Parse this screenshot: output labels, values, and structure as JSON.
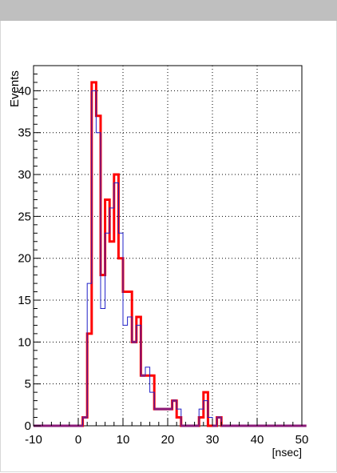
{
  "window": {
    "title": ""
  },
  "chart_data": {
    "type": "histogram",
    "title": "",
    "xlabel": "[nsec]",
    "ylabel": "Events",
    "xlim": [
      -10,
      50
    ],
    "ylim": [
      0,
      43
    ],
    "grid": true,
    "bin_width": 1,
    "x_ticks": [
      -10,
      0,
      10,
      20,
      30,
      40,
      50
    ],
    "y_ticks": [
      0,
      5,
      10,
      15,
      20,
      25,
      30,
      35,
      40
    ],
    "series": [
      {
        "color": "#2020c8",
        "stroke_width": 1,
        "bins_start": 1,
        "values": [
          1,
          17,
          40,
          35,
          14,
          23,
          26,
          29,
          23,
          12,
          13,
          10,
          12,
          6,
          7,
          4,
          2,
          2,
          2,
          2,
          3,
          2,
          0,
          0,
          0,
          0,
          2,
          3,
          1,
          0,
          1,
          0,
          0,
          0,
          0,
          0,
          0,
          0,
          0,
          0,
          0,
          0,
          0,
          0,
          0,
          0,
          0,
          0,
          0,
          0
        ]
      },
      {
        "color": "#ff0000",
        "stroke_width": 3,
        "bins_start": 1,
        "values": [
          1,
          11,
          41,
          37,
          18,
          27,
          22,
          30,
          20,
          16,
          16,
          10,
          13,
          6,
          6,
          6,
          2,
          2,
          2,
          2,
          3,
          1,
          0,
          0,
          0,
          0,
          1,
          4,
          0,
          0,
          1,
          0,
          0,
          0,
          0,
          0,
          0,
          0,
          0,
          0,
          0,
          0,
          0,
          0,
          0,
          0,
          0,
          0,
          0,
          0
        ]
      }
    ],
    "overlap_color": "#8a1a78"
  }
}
